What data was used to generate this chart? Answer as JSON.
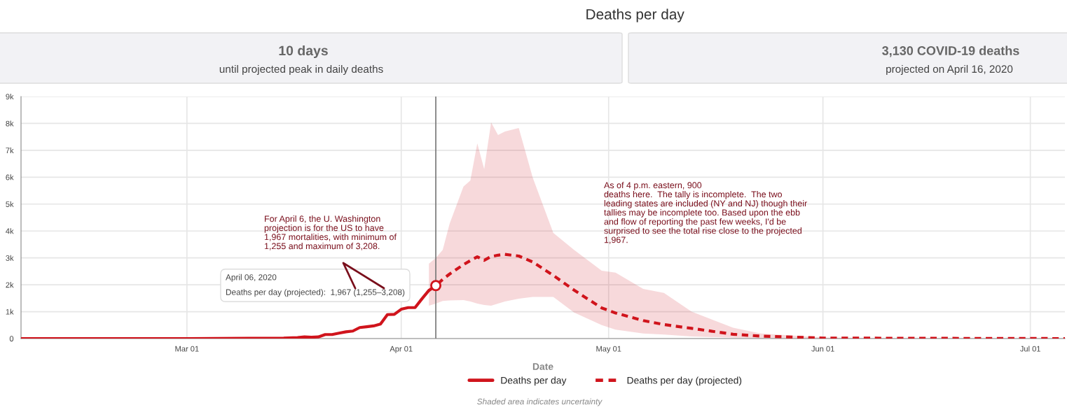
{
  "chart_data": {
    "type": "line",
    "title": "Deaths per day",
    "xlabel": "Date",
    "annotations": [
      "10 days",
      "until projected peak in daily deaths",
      "3,130 COVID-19 deaths",
      "projected on April 16, 2020",
      "April 06, 2020\nDeaths per day (projected):  1,967 (1,255–3,208)",
      "For April 6, the U. Washington\nprojection is for the US to have\n1,967 mortalities, with minimum of\n1,255 and maximum of 3,208.",
      "As of 4 p.m. eastern, 900\ndeaths here.  The tally is incomplete.  The two\nleading states are included (NY and NJ) though their\ntallies may be incomplete too. Based upon the ebb\nand flow of reporting the past few weeks, I'd be\nsurprised to see the total rise close to the projected\n1,967.",
      "Shaded area indicates uncertainty"
    ],
    "series": [
      {
        "name": "Deaths per day",
        "color": "#d0141c",
        "line_style": "solid",
        "x": [
          "2020-02-06",
          "2020-03-01",
          "2020-03-10",
          "2020-03-15",
          "2020-03-17",
          "2020-03-18",
          "2020-03-19",
          "2020-03-20",
          "2020-03-21",
          "2020-03-22",
          "2020-03-23",
          "2020-03-24",
          "2020-03-25",
          "2020-03-26",
          "2020-03-27",
          "2020-03-28",
          "2020-03-29",
          "2020-03-30",
          "2020-03-31",
          "2020-04-01",
          "2020-04-02",
          "2020-04-03",
          "2020-04-04",
          "2020-04-05"
        ],
        "values": [
          0,
          0,
          10,
          20,
          40,
          60,
          50,
          60,
          150,
          150,
          200,
          250,
          280,
          410,
          440,
          470,
          540,
          890,
          900,
          1090,
          1150,
          1150,
          1480,
          1790
        ]
      },
      {
        "name": "Deaths per day (projected)",
        "color": "#d0141c",
        "line_style": "dashed",
        "x": [
          "2020-04-05",
          "2020-04-06",
          "2020-04-07",
          "2020-04-08",
          "2020-04-10",
          "2020-04-11",
          "2020-04-12",
          "2020-04-13",
          "2020-04-14",
          "2020-04-15",
          "2020-04-16",
          "2020-04-18",
          "2020-04-20",
          "2020-04-23",
          "2020-04-26",
          "2020-04-30",
          "2020-05-02",
          "2020-05-06",
          "2020-05-09",
          "2020-05-13",
          "2020-05-19",
          "2020-05-23",
          "2020-06-01",
          "2020-06-15",
          "2020-07-06"
        ],
        "values": [
          1790,
          1970,
          2200,
          2400,
          2750,
          2900,
          3040,
          2910,
          3050,
          3100,
          3130,
          3070,
          2850,
          2350,
          1800,
          1140,
          950,
          670,
          520,
          380,
          160,
          90,
          20,
          10,
          0
        ],
        "lower": [
          1220,
          1300,
          1400,
          1420,
          1430,
          1380,
          1300,
          1250,
          1220,
          1300,
          1380,
          1480,
          1550,
          1550,
          970,
          500,
          330,
          190,
          150,
          80,
          30,
          10,
          0,
          0,
          0
        ],
        "upper": [
          2780,
          3000,
          3300,
          4270,
          5650,
          5880,
          7260,
          6300,
          8040,
          7570,
          7700,
          7830,
          6000,
          3930,
          3300,
          2520,
          2450,
          1850,
          1700,
          1000,
          400,
          190,
          40,
          5,
          0
        ]
      },
      {
        "type": "scatter",
        "color": "#d0141c",
        "marker": "circle",
        "x": [
          "2020-04-06"
        ],
        "values": [
          1970
        ]
      }
    ],
    "ref_lines": [
      {
        "axis": "x",
        "value": "2020-04-06",
        "color": "#777777"
      }
    ],
    "xlim": [
      "2020-02-06",
      "2020-07-06"
    ],
    "xticks": [
      {
        "value": "2020-03-01",
        "label": "Mar 01"
      },
      {
        "value": "2020-04-01",
        "label": "Apr 01"
      },
      {
        "value": "2020-05-01",
        "label": "May 01"
      },
      {
        "value": "2020-06-01",
        "label": "Jun 01"
      },
      {
        "value": "2020-07-01",
        "label": "Jul 01"
      }
    ],
    "ylim": [
      0,
      9000
    ],
    "yticks": [
      0,
      {
        "value": 1000,
        "label": "1k"
      },
      {
        "value": 2000,
        "label": "2k"
      },
      {
        "value": 3000,
        "label": "3k"
      },
      {
        "value": 4000,
        "label": "4k"
      },
      {
        "value": 5000,
        "label": "5k"
      },
      {
        "value": 6000,
        "label": "6k"
      },
      {
        "value": 7000,
        "label": "7k"
      },
      {
        "value": 8000,
        "label": "8k"
      },
      {
        "value": 9000,
        "label": "9k"
      }
    ],
    "grid": true,
    "legend": "bottom"
  }
}
